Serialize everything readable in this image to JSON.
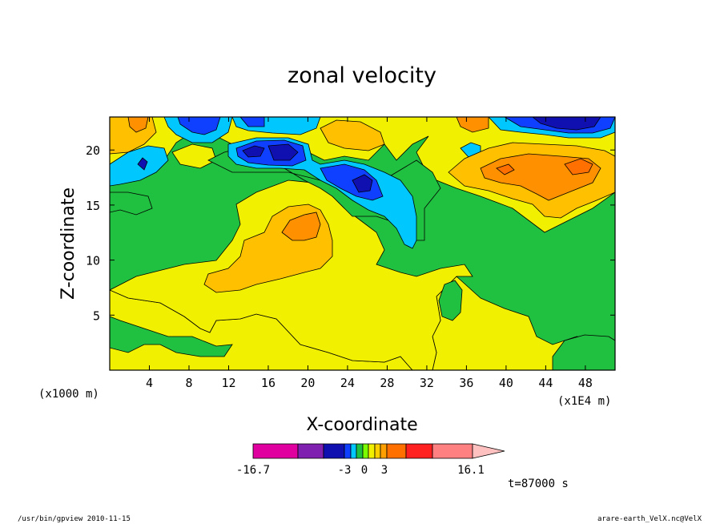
{
  "chart_data": {
    "type": "contour",
    "title": "zonal velocity",
    "xlabel": "X-coordinate",
    "ylabel": "Z-coordinate",
    "x_unit": "(x1E4 m)",
    "y_unit": "(x1000 m)",
    "xlim": [
      0,
      51
    ],
    "ylim": [
      0,
      23
    ],
    "x_ticks": [
      4,
      8,
      12,
      16,
      20,
      24,
      28,
      32,
      36,
      40,
      44,
      48
    ],
    "y_ticks": [
      5,
      10,
      15,
      20
    ],
    "time_label": "t=87000 s",
    "colorbar": {
      "min_label": "-16.7",
      "max_label": "16.1",
      "tick_labels": [
        "-3",
        "0",
        "3"
      ],
      "colors": [
        "#e000a0",
        "#8020b0",
        "#1010b0",
        "#1040ff",
        "#00c8ff",
        "#20c040",
        "#7cfc00",
        "#f0f000",
        "#ffd000",
        "#ffa000",
        "#ff7000",
        "#ff2020",
        "#ff8080",
        "#ffc0c0"
      ]
    },
    "features": [
      {
        "name": "positive-core",
        "x": 19,
        "z": 13,
        "value": 5
      },
      {
        "name": "negative-core",
        "x": 26,
        "z": 17,
        "value": -8
      },
      {
        "name": "negative-core",
        "x": 17,
        "z": 20,
        "value": -8
      },
      {
        "name": "negative-core",
        "x": 46,
        "z": 22,
        "value": -10
      },
      {
        "name": "positive-core",
        "x": 46,
        "z": 19,
        "value": 6
      }
    ]
  },
  "footer": {
    "left": "/usr/bin/gpview  2010-11-15",
    "right": "arare-earth_VelX.nc@VelX"
  }
}
